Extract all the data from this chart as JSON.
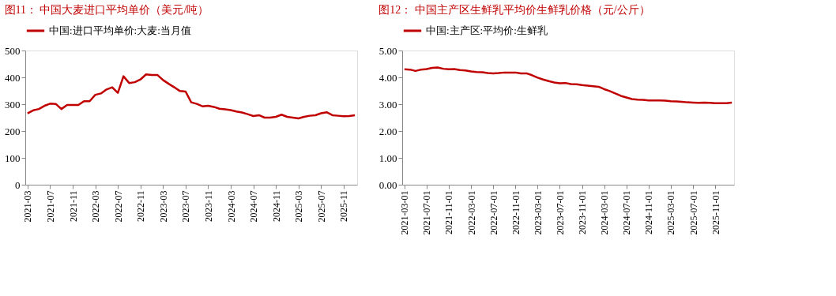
{
  "chart_data": [
    {
      "type": "line",
      "title": "图11：  中国大麦进口平均单价（美元/吨）",
      "categories": [
        "2021-03",
        null,
        null,
        null,
        "2021-07",
        null,
        null,
        null,
        "2021-11",
        null,
        null,
        null,
        "2022-03",
        null,
        null,
        null,
        "2022-07",
        null,
        null,
        null,
        "2022-11",
        null,
        null,
        null,
        "2023-03",
        null,
        null,
        null,
        "2023-07",
        null,
        null,
        null,
        "2023-11",
        null,
        null,
        null,
        "2024-03",
        null,
        null,
        null,
        "2024-07",
        null,
        null,
        null,
        "2024-11",
        null,
        null,
        null,
        "2025-03",
        null,
        null,
        null,
        "2025-07",
        null,
        null,
        null,
        "2025-11",
        null,
        null
      ],
      "series": [
        {
          "name": "中国:进口平均单价:大麦:当月值",
          "color": "#c00000",
          "values": [
            266,
            277,
            282,
            294,
            302,
            301,
            282,
            297,
            297,
            297,
            311,
            311,
            335,
            340,
            355,
            363,
            342,
            404,
            379,
            382,
            392,
            411,
            409,
            409,
            390,
            376,
            363,
            349,
            347,
            307,
            301,
            292,
            294,
            290,
            283,
            281,
            278,
            273,
            269,
            263,
            256,
            259,
            250,
            250,
            253,
            261,
            253,
            250,
            247,
            253,
            257,
            259,
            266,
            270,
            259,
            257,
            255,
            256,
            259
          ]
        }
      ],
      "ylim": [
        0,
        500
      ],
      "yticks": [
        0,
        100,
        200,
        300,
        400,
        500
      ],
      "grid": false,
      "legend": "top",
      "marker": "none",
      "line_style": "solid"
    },
    {
      "type": "line",
      "title": "图12：  中国主产区生鲜乳平均价生鲜乳价格（元/公斤）",
      "categories": [
        "2021-03-01",
        null,
        null,
        null,
        "2021-07-01",
        null,
        null,
        null,
        "2021-11-01",
        null,
        null,
        null,
        "2022-03-01",
        null,
        null,
        null,
        "2022-07-01",
        null,
        null,
        null,
        "2022-11-01",
        null,
        null,
        null,
        "2023-03-01",
        null,
        null,
        null,
        "2023-07-01",
        null,
        null,
        null,
        "2023-11-01",
        null,
        null,
        null,
        "2024-03-01",
        null,
        null,
        null,
        "2024-07-01",
        null,
        null,
        null,
        "2024-11-01",
        null,
        null,
        null,
        "2025-03-01",
        null,
        null,
        null,
        "2025-07-01",
        null,
        null,
        null,
        "2025-11-01",
        null,
        null,
        null
      ],
      "series": [
        {
          "name": "中国:主产区:平均价:生鲜乳",
          "color": "#c00000",
          "values": [
            4.3,
            4.29,
            4.24,
            4.29,
            4.31,
            4.35,
            4.37,
            4.32,
            4.3,
            4.31,
            4.27,
            4.26,
            4.22,
            4.2,
            4.19,
            4.16,
            4.15,
            4.16,
            4.18,
            4.18,
            4.18,
            4.15,
            4.15,
            4.08,
            3.99,
            3.92,
            3.86,
            3.81,
            3.78,
            3.79,
            3.75,
            3.74,
            3.71,
            3.69,
            3.67,
            3.65,
            3.56,
            3.49,
            3.4,
            3.31,
            3.25,
            3.19,
            3.17,
            3.16,
            3.14,
            3.14,
            3.14,
            3.13,
            3.11,
            3.1,
            3.09,
            3.07,
            3.06,
            3.05,
            3.06,
            3.05,
            3.04,
            3.04,
            3.04,
            3.06
          ]
        }
      ],
      "ylim": [
        0,
        5
      ],
      "yticks": [
        {
          "value": 0,
          "label": "0.00"
        },
        {
          "value": 1,
          "label": "1.00"
        },
        {
          "value": 2,
          "label": "2.00"
        },
        {
          "value": 3,
          "label": "3.00"
        },
        {
          "value": 4,
          "label": "4.00"
        },
        {
          "value": 5,
          "label": "5.00"
        }
      ],
      "grid": false,
      "legend": "top",
      "marker": "none",
      "line_style": "solid"
    }
  ]
}
